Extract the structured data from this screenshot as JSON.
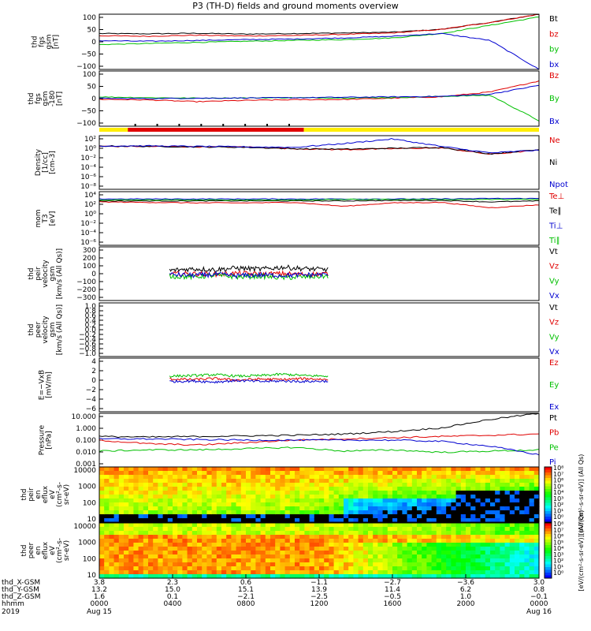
{
  "page_title": "P3 (TH-D) fields and ground moments overview",
  "chart_data": [
    {
      "id": "fgs_gsm",
      "type": "line",
      "ylabel": [
        "thd",
        "fgs",
        "gsm",
        "[nT]"
      ],
      "yticks": [
        "100",
        "50",
        "0",
        "−50",
        "−100"
      ],
      "ylim": [
        -100,
        100
      ],
      "series": [
        {
          "name": "Bt",
          "color": "#000000",
          "values": [
            30,
            29,
            31,
            28,
            30,
            32,
            35,
            45,
            70,
            100
          ]
        },
        {
          "name": "bz",
          "color": "#e00000",
          "values": [
            22,
            20,
            24,
            21,
            23,
            27,
            32,
            45,
            70,
            100
          ]
        },
        {
          "name": "by",
          "color": "#00c000",
          "values": [
            -10,
            -6,
            -2,
            2,
            5,
            8,
            14,
            30,
            60,
            90
          ]
        },
        {
          "name": "bx",
          "color": "#0000d0",
          "values": [
            4,
            2,
            5,
            8,
            10,
            14,
            20,
            30,
            5,
            -100
          ]
        }
      ]
    },
    {
      "id": "fgs_gsm_detrend",
      "type": "line",
      "ylabel": [
        "thd",
        "fgs",
        "gsm",
        "-180",
        "[nT]"
      ],
      "yticks": [
        "100",
        "50",
        "0",
        "−50",
        "−100"
      ],
      "ylim": [
        -125,
        125
      ],
      "series": [
        {
          "name": "Bz",
          "color": "#e00000",
          "values": [
            -3,
            -6,
            -14,
            -8,
            -5,
            -4,
            2,
            8,
            30,
            80
          ]
        },
        {
          "name": "By",
          "color": "#00c000",
          "values": [
            8,
            4,
            2,
            3,
            4,
            3,
            5,
            10,
            15,
            -100
          ]
        },
        {
          "name": "Bx",
          "color": "#0000d0",
          "values": [
            1,
            0,
            2,
            3,
            4,
            6,
            8,
            10,
            20,
            60
          ]
        }
      ]
    },
    {
      "id": "density",
      "type": "line",
      "ylabel": [
        "Density",
        "[1/cc]",
        "[cm-3]"
      ],
      "yticks": [
        "10²",
        "10⁰",
        "10⁻²",
        "10⁻⁴",
        "10⁻⁶",
        "10⁻⁸"
      ],
      "yscale": "log",
      "ylim": [
        -9,
        2.5
      ],
      "series": [
        {
          "name": "Ne",
          "color": "#e00000",
          "values": [
            0.2,
            0.2,
            0.1,
            0.1,
            -0.3,
            -0.5,
            -0.3,
            -0.1,
            -1.5,
            -0.6
          ]
        },
        {
          "name": "Ni",
          "color": "#000000",
          "values": [
            0.3,
            0.2,
            0.1,
            0.0,
            -0.3,
            -0.4,
            -0.2,
            0.0,
            -1.4,
            -0.5
          ]
        },
        {
          "name": "Npot",
          "color": "#0000d0",
          "values": [
            0.3,
            0.3,
            0.2,
            0.1,
            0.0,
            0.8,
            1.8,
            0.2,
            -1.2,
            -0.6
          ]
        }
      ]
    },
    {
      "id": "mom_temperature",
      "type": "line",
      "ylabel": [
        "mom",
        "T3",
        "[eV]"
      ],
      "yticks": [
        "10⁴",
        "10²",
        "10⁰",
        "10⁻²",
        "10⁻⁴",
        "10⁻⁶"
      ],
      "yscale": "log",
      "ylim": [
        -6.5,
        4.5
      ],
      "series": [
        {
          "name": "Te⊥",
          "color": "#e00000",
          "values": [
            2.4,
            2.3,
            2.2,
            2.2,
            2.3,
            1.5,
            2.2,
            2.3,
            1.2,
            1.8
          ]
        },
        {
          "name": "Te∥",
          "color": "#000000",
          "values": [
            2.6,
            2.6,
            2.6,
            2.6,
            2.6,
            2.6,
            2.7,
            2.7,
            2.4,
            2.6
          ]
        },
        {
          "name": "Ti⊥",
          "color": "#0000d0",
          "values": [
            3.0,
            3.0,
            3.0,
            3.0,
            3.0,
            3.0,
            3.0,
            3.0,
            3.1,
            3.1
          ]
        },
        {
          "name": "Ti∥",
          "color": "#00c000",
          "values": [
            2.8,
            2.8,
            2.8,
            2.8,
            2.8,
            2.9,
            2.9,
            2.9,
            2.9,
            2.9
          ]
        }
      ]
    },
    {
      "id": "peir_velocity",
      "type": "line",
      "ylabel": [
        "thd",
        "peir",
        "velocity",
        "gsm",
        "[km/s (All Qs)]"
      ],
      "yticks": [
        "300",
        "200",
        "100",
        "0",
        "−100",
        "−200",
        "−300"
      ],
      "ylim": [
        -330,
        330
      ],
      "x_extent": [
        0.16,
        0.52
      ],
      "series": [
        {
          "name": "Vt",
          "color": "#000000",
          "values": [
            40,
            60,
            50,
            70,
            55,
            80,
            60,
            50
          ]
        },
        {
          "name": "Vz",
          "color": "#e00000",
          "values": [
            -5,
            0,
            -10,
            5,
            -5,
            0,
            -10,
            0
          ]
        },
        {
          "name": "Vy",
          "color": "#00c000",
          "values": [
            -30,
            -40,
            -20,
            -40,
            -30,
            -50,
            -40,
            -30
          ]
        },
        {
          "name": "Vx",
          "color": "#0000d0",
          "values": [
            -10,
            -20,
            -10,
            -25,
            -15,
            -20,
            -15,
            -10
          ]
        }
      ]
    },
    {
      "id": "peer_velocity",
      "type": "line",
      "ylabel": [
        "thd",
        "peer",
        "velocity",
        "gsm",
        "[km/s (All Qs)]"
      ],
      "yticks": [
        "1.0",
        "0.8",
        "0.6",
        "0.4",
        "0.2",
        "0.0",
        "−0.2",
        "−0.4",
        "−0.6",
        "−0.8",
        "−1.0"
      ],
      "ylim": [
        -1,
        1
      ],
      "series": [
        {
          "name": "Vt",
          "color": "#000000",
          "values": []
        },
        {
          "name": "Vz",
          "color": "#e00000",
          "values": []
        },
        {
          "name": "Vy",
          "color": "#00c000",
          "values": []
        },
        {
          "name": "Vx",
          "color": "#0000d0",
          "values": []
        }
      ]
    },
    {
      "id": "efield",
      "type": "line",
      "ylabel": [
        "E=−VxB",
        "[mV/m]"
      ],
      "yticks": [
        "4",
        "2",
        "0",
        "−2",
        "−4",
        "−6"
      ],
      "ylim": [
        -6.5,
        4.5
      ],
      "x_extent": [
        0.16,
        0.52
      ],
      "series": [
        {
          "name": "Ez",
          "color": "#e00000",
          "values": [
            0.2,
            0.1,
            0.3,
            0.0,
            0.2,
            0.1,
            0.3,
            0.1
          ]
        },
        {
          "name": "Ey",
          "color": "#00c000",
          "values": [
            0.8,
            0.9,
            1.1,
            0.8,
            0.9,
            1.2,
            0.9,
            0.8
          ]
        },
        {
          "name": "Ex",
          "color": "#0000d0",
          "values": [
            -0.3,
            -0.2,
            -0.4,
            -0.1,
            -0.3,
            -0.2,
            -0.3,
            -0.2
          ]
        }
      ]
    },
    {
      "id": "pressure",
      "type": "line",
      "ylabel": [
        "Pressure",
        "[nPa]"
      ],
      "yticks": [
        "10.000",
        "1.000",
        "0.100",
        "0.010",
        "0.001"
      ],
      "yscale": "log",
      "ylim": [
        -3.2,
        1.2
      ],
      "series": [
        {
          "name": "Pt",
          "color": "#000000",
          "values": [
            -0.7,
            -0.75,
            -0.7,
            -0.65,
            -0.6,
            -0.5,
            -0.3,
            0.0,
            0.7,
            1.2
          ]
        },
        {
          "name": "Pb",
          "color": "#e00000",
          "values": [
            -1.0,
            -1.3,
            -1.4,
            -1.2,
            -1.0,
            -0.9,
            -0.8,
            -0.7,
            -0.6,
            -0.5
          ]
        },
        {
          "name": "Pe",
          "color": "#00c000",
          "values": [
            -1.9,
            -1.8,
            -1.8,
            -1.7,
            -1.6,
            -1.9,
            -1.8,
            -2.0,
            -1.9,
            -1.8
          ]
        },
        {
          "name": "Pi",
          "color": "#0000d0",
          "values": [
            -0.9,
            -0.9,
            -0.95,
            -1.0,
            -1.0,
            -1.0,
            -1.0,
            -1.1,
            -1.5,
            -2.2
          ]
        }
      ]
    },
    {
      "id": "peir_spectrogram",
      "type": "heatmap",
      "ylabel": [
        "thd",
        "peir",
        "en",
        "eflux",
        "eV",
        "(cm²-s-",
        "sr-eV)"
      ],
      "yticks": [
        "10000",
        "1000",
        "100",
        "10"
      ],
      "colorbar_label": "[eV/(cm²-s-sr-eV)] (All Qs)"
    },
    {
      "id": "peer_spectrogram",
      "type": "heatmap",
      "ylabel": [
        "thd",
        "peer",
        "en",
        "eflux",
        "eV",
        "(cm²-s-",
        "sr-eV)"
      ],
      "yticks": [
        "10000",
        "1000",
        "100",
        "10"
      ],
      "colorbar_label": "[eV/(cm²-s-sr-eV)] (All Qs)"
    }
  ],
  "colorbar_ticks": [
    "10⁸",
    "10⁷",
    "10⁶",
    "10⁵",
    "10⁴",
    "10³",
    "10²",
    "10¹",
    "10⁰"
  ],
  "ephemeris": {
    "labels": [
      "thd_X-GSM",
      "thd_Y-GSM",
      "thd_Z-GSM",
      "hhmm",
      "2019"
    ],
    "columns": [
      [
        "3.8",
        "13.2",
        "1.6",
        "0000",
        "Aug 15"
      ],
      [
        "2.3",
        "15.0",
        "0.1",
        "0400",
        ""
      ],
      [
        "0.6",
        "15.1",
        "−2.1",
        "0800",
        ""
      ],
      [
        "−1.1",
        "13.9",
        "−2.5",
        "1200",
        ""
      ],
      [
        "−2.7",
        "11.4",
        "−0.5",
        "1600",
        ""
      ],
      [
        "−3.6",
        "6.2",
        "1.0",
        "2000",
        ""
      ],
      [
        "3.0",
        "0.8",
        "−0.1",
        "0000",
        "Aug 16"
      ]
    ]
  }
}
